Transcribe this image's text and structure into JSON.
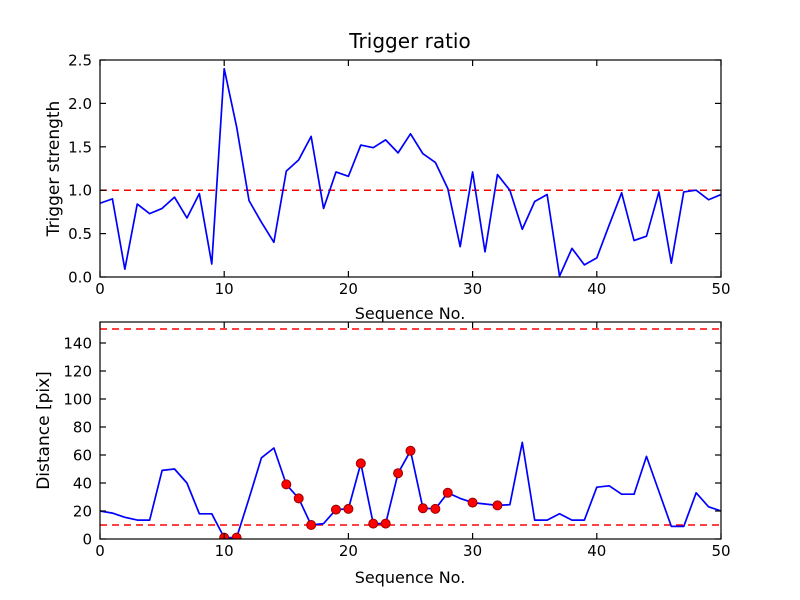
{
  "figure": {
    "background": "#ffffff"
  },
  "colors": {
    "line": "#0000ff",
    "threshold": "#ff0000",
    "marker_fill": "#ff0000",
    "marker_edge": "#990000",
    "axis": "#000000"
  },
  "chart_data": [
    {
      "type": "line",
      "title": "Trigger ratio",
      "xlabel": "Sequence No.",
      "ylabel": "Trigger strength",
      "xlim": [
        0,
        50
      ],
      "ylim": [
        0,
        2.5
      ],
      "xticks": [
        0,
        10,
        20,
        30,
        40,
        50
      ],
      "xtick_labels": [
        "0",
        "10",
        "20",
        "30",
        "40",
        "50"
      ],
      "yticks": [
        0,
        0.5,
        1.0,
        1.5,
        2.0,
        2.5
      ],
      "ytick_labels": [
        "0.0",
        "0.5",
        "1.0",
        "1.5",
        "2.0",
        "2.5"
      ],
      "grid": false,
      "legend": null,
      "threshold_lines": [
        1.0
      ],
      "x": [
        0,
        1,
        2,
        3,
        4,
        5,
        6,
        7,
        8,
        9,
        10,
        11,
        12,
        13,
        14,
        15,
        16,
        17,
        18,
        19,
        20,
        21,
        22,
        23,
        24,
        25,
        26,
        27,
        28,
        29,
        30,
        31,
        32,
        33,
        34,
        35,
        36,
        37,
        38,
        39,
        40,
        41,
        42,
        43,
        44,
        45,
        46,
        47,
        48,
        49,
        50
      ],
      "y": [
        0.85,
        0.9,
        0.09,
        0.84,
        0.73,
        0.79,
        0.92,
        0.68,
        0.96,
        0.15,
        2.4,
        1.73,
        0.88,
        0.63,
        0.4,
        1.22,
        1.35,
        1.62,
        0.79,
        1.21,
        1.16,
        1.52,
        1.49,
        1.58,
        1.43,
        1.65,
        1.42,
        1.32,
        1.02,
        0.35,
        1.21,
        0.29,
        1.18,
        1.0,
        0.55,
        0.87,
        0.95,
        0.01,
        0.33,
        0.14,
        0.22,
        0.6,
        0.97,
        0.42,
        0.47,
        0.98,
        0.16,
        0.98,
        1.0,
        0.89,
        0.95
      ],
      "marker_x": []
    },
    {
      "type": "line",
      "title": "",
      "xlabel": "Sequence No.",
      "ylabel": "Distance [pix]",
      "xlim": [
        0,
        50
      ],
      "ylim": [
        0,
        155
      ],
      "xticks": [
        0,
        10,
        20,
        30,
        40,
        50
      ],
      "xtick_labels": [
        "0",
        "10",
        "20",
        "30",
        "40",
        "50"
      ],
      "yticks": [
        0,
        20,
        40,
        60,
        80,
        100,
        120,
        140
      ],
      "ytick_labels": [
        "0",
        "20",
        "40",
        "60",
        "80",
        "100",
        "120",
        "140"
      ],
      "grid": false,
      "legend": null,
      "threshold_lines": [
        10,
        150
      ],
      "x": [
        0,
        1,
        2,
        3,
        4,
        5,
        6,
        7,
        8,
        9,
        10,
        11,
        12,
        13,
        14,
        15,
        16,
        17,
        18,
        19,
        20,
        21,
        22,
        23,
        24,
        25,
        26,
        27,
        28,
        29,
        30,
        31,
        32,
        33,
        34,
        35,
        36,
        37,
        38,
        39,
        40,
        41,
        42,
        43,
        44,
        45,
        46,
        47,
        48,
        49,
        50
      ],
      "y": [
        20,
        18.5,
        15.5,
        13.5,
        13.5,
        49,
        50,
        40,
        18,
        18,
        1,
        1,
        29,
        58,
        65,
        39,
        29,
        10,
        11,
        21,
        21.5,
        54,
        11,
        11,
        47,
        63,
        22,
        21.5,
        33,
        29,
        26,
        25,
        24,
        24.5,
        69,
        13.5,
        13.5,
        18,
        13.5,
        13.5,
        37,
        38,
        32,
        32,
        59,
        34,
        9,
        9,
        33,
        23,
        20
      ],
      "marker_x": [
        10,
        11,
        15,
        16,
        17,
        19,
        20,
        21,
        22,
        23,
        24,
        25,
        26,
        27,
        28,
        30,
        32
      ]
    }
  ]
}
